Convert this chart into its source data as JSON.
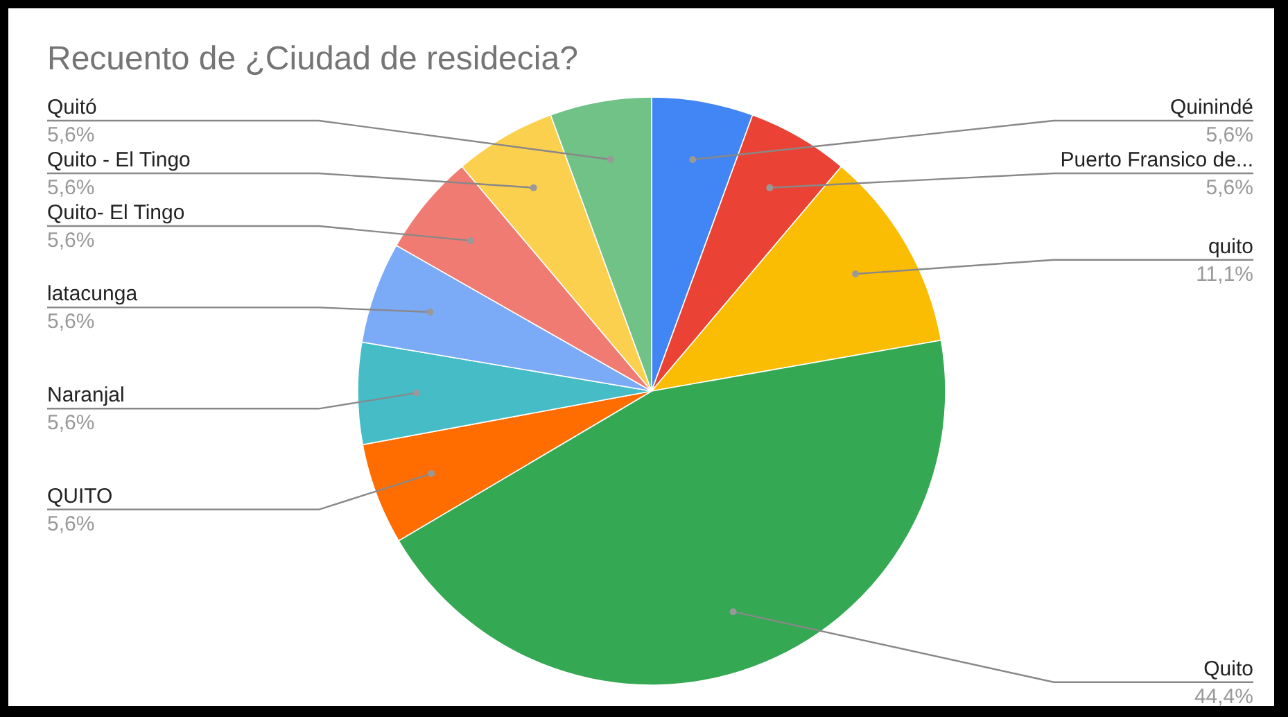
{
  "chart_data": {
    "type": "pie",
    "title": "Recuento de ¿Ciudad de residecia?",
    "categories": [
      "Quinindé",
      "Puerto Fransico de...",
      "quito",
      "Quito",
      "QUITO",
      "Naranjal",
      "latacunga",
      "Quito- El Tingo",
      "Quito - El Tingo",
      "Quitó"
    ],
    "values": [
      5.6,
      5.6,
      11.1,
      44.4,
      5.6,
      5.6,
      5.6,
      5.6,
      5.6,
      5.6
    ],
    "colors": [
      "#4285f4",
      "#ea4335",
      "#fbbc04",
      "#34a853",
      "#ff6d01",
      "#46bdc6",
      "#7baaf7",
      "#f07b72",
      "#fcd04f",
      "#71c287"
    ],
    "value_labels": [
      "5,6%",
      "5,6%",
      "11,1%",
      "44,4%",
      "5,6%",
      "5,6%",
      "5,6%",
      "5,6%",
      "5,6%",
      "5,6%"
    ]
  }
}
